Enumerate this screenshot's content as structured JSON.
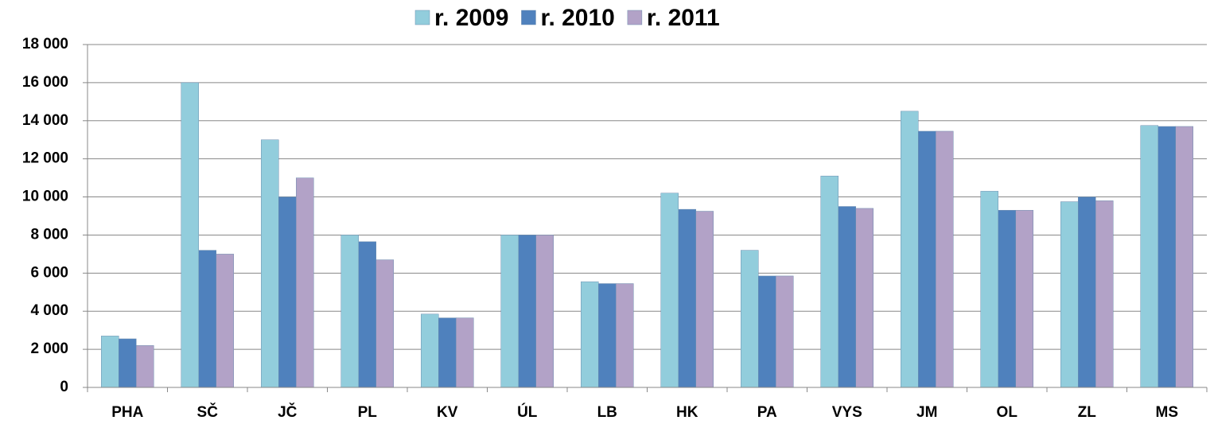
{
  "chart_data": {
    "type": "bar",
    "categories": [
      "PHA",
      "SČ",
      "JČ",
      "PL",
      "KV",
      "ÚL",
      "LB",
      "HK",
      "PA",
      "VYS",
      "JM",
      "OL",
      "ZL",
      "MS"
    ],
    "series": [
      {
        "name": "r. 2009",
        "color": "#92cddc",
        "values": [
          2700,
          16000,
          13000,
          8000,
          3850,
          8000,
          5550,
          10200,
          7200,
          11100,
          14500,
          10300,
          9750,
          13750
        ]
      },
      {
        "name": "r. 2010",
        "color": "#4f81bd",
        "values": [
          2550,
          7200,
          10000,
          7650,
          3650,
          8000,
          5450,
          9350,
          5850,
          9500,
          13450,
          9300,
          10000,
          13700
        ]
      },
      {
        "name": "r. 2011",
        "color": "#b2a2c7",
        "values": [
          2200,
          7000,
          11000,
          6700,
          3650,
          8000,
          5450,
          9250,
          5850,
          9400,
          13450,
          9300,
          9800,
          13700
        ]
      }
    ],
    "ylim": [
      0,
      18000
    ],
    "yticks": [
      0,
      {
        "value": 2000,
        "label": "2 000"
      },
      {
        "value": 4000,
        "label": "4 000"
      },
      {
        "value": 6000,
        "label": "6 000"
      },
      {
        "value": 8000,
        "label": "8 000"
      },
      {
        "value": 10000,
        "label": "10 000"
      },
      {
        "value": 12000,
        "label": "12 000"
      },
      {
        "value": 14000,
        "label": "14 000"
      },
      {
        "value": 16000,
        "label": "16 000"
      },
      {
        "value": 18000,
        "label": "18 000"
      }
    ],
    "grid": true,
    "legend": "top"
  }
}
